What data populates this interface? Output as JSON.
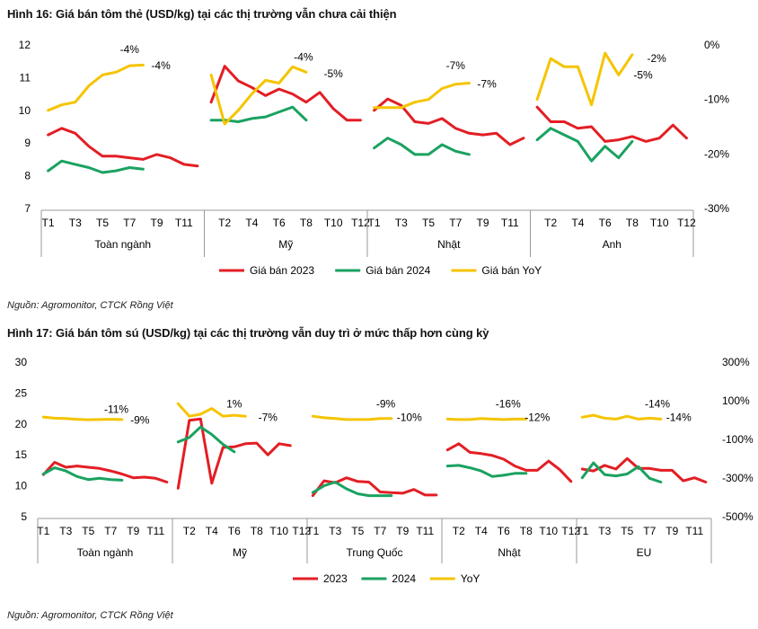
{
  "figure1": {
    "title": "Hình 16: Giá bán tôm thẻ (USD/kg) tại các thị trường vẫn chưa cải thiện",
    "source": "Nguồn: Agromonitor, CTCK Rồng Việt"
  },
  "figure2": {
    "title": "Hình 17: Giá bán tôm sú (USD/kg) tại các thị trường vẫn duy trì ở mức thấp hơn cùng kỳ",
    "source": "Nguồn: Agromonitor, CTCK Rồng Việt"
  },
  "colors": {
    "s2023": "#e31e24",
    "s2024": "#1aa260",
    "yoy": "#f5c400",
    "axis": "#999999"
  },
  "chart_data": [
    {
      "type": "line",
      "title": "Hình 16: Giá bán tôm thẻ (USD/kg) tại các thị trường vẫn chưa cải thiện",
      "ylim": [
        7,
        12
      ],
      "y_ticks": [
        "7",
        "8",
        "9",
        "10",
        "11",
        "12"
      ],
      "y2lim": [
        -30,
        0
      ],
      "y2_ticks": [
        "-30%",
        "-20%",
        "-10%",
        "0%"
      ],
      "legend": [
        "Giá bán 2023",
        "Giá bán 2024",
        "Giá bán YoY"
      ],
      "legend_position": "bottom",
      "groups": [
        {
          "name": "Toàn ngành",
          "tick_labels": [
            "T1",
            "T3",
            "T5",
            "T7",
            "T9",
            "T11"
          ],
          "tick_months": [
            1,
            3,
            5,
            7,
            9,
            11
          ],
          "s2023": [
            9.25,
            9.45,
            9.3,
            8.9,
            8.6,
            8.6,
            8.55,
            8.5,
            8.65,
            8.55,
            8.35,
            8.3
          ],
          "s2024": [
            8.15,
            8.45,
            8.35,
            8.25,
            8.1,
            8.15,
            8.25,
            8.2
          ],
          "yoy": [
            -12,
            -11,
            -10.5,
            -7.5,
            -5.5,
            -5,
            -3.8,
            -3.7
          ],
          "yoy_labels": [
            {
              "text": "-4%",
              "month": 7,
              "y": -0.8
            },
            {
              "text": "-4%",
              "month": 9.3,
              "y": -3.8
            }
          ]
        },
        {
          "name": "Mỹ",
          "tick_labels": [
            "T2",
            "T4",
            "T6",
            "T8",
            "T10",
            "T12"
          ],
          "tick_months": [
            2,
            4,
            6,
            8,
            10,
            12
          ],
          "s2023": [
            10.25,
            11.35,
            10.9,
            10.7,
            10.45,
            10.65,
            10.5,
            10.25,
            10.55,
            10.05,
            9.7,
            9.7
          ],
          "s2024": [
            9.7,
            9.7,
            9.65,
            9.75,
            9.8,
            9.95,
            10.1,
            9.7
          ],
          "yoy": [
            -5.5,
            -14.5,
            -12,
            -9,
            -6.5,
            -7,
            -4,
            -5
          ],
          "yoy_labels": [
            {
              "text": "-4%",
              "month": 7.8,
              "y": -2.2
            },
            {
              "text": "-5%",
              "month": 10,
              "y": -5.3
            }
          ]
        },
        {
          "name": "Nhật",
          "tick_labels": [
            "T1",
            "T3",
            "T5",
            "T7",
            "T9",
            "T11"
          ],
          "tick_months": [
            1,
            3,
            5,
            7,
            9,
            11
          ],
          "s2023": [
            10.0,
            10.35,
            10.15,
            9.65,
            9.6,
            9.75,
            9.45,
            9.3,
            9.25,
            9.3,
            8.95,
            9.15
          ],
          "s2024": [
            8.85,
            9.15,
            8.95,
            8.65,
            8.65,
            8.95,
            8.75,
            8.65
          ],
          "yoy": [
            -11.5,
            -11.5,
            -11.5,
            -10.5,
            -10,
            -8,
            -7.2,
            -7
          ],
          "yoy_labels": [
            {
              "text": "-7%",
              "month": 7,
              "y": -3.8
            },
            {
              "text": "-7%",
              "month": 9.3,
              "y": -7.2
            }
          ]
        },
        {
          "name": "Anh",
          "tick_labels": [
            "T2",
            "T4",
            "T6",
            "T8",
            "T10",
            "T12"
          ],
          "tick_months": [
            2,
            4,
            6,
            8,
            10,
            12
          ],
          "s2023": [
            10.1,
            9.65,
            9.65,
            9.45,
            9.5,
            9.05,
            9.1,
            9.2,
            9.05,
            9.15,
            9.55,
            9.15
          ],
          "s2024": [
            9.1,
            9.45,
            9.25,
            9.05,
            8.45,
            8.9,
            8.55,
            9.05
          ],
          "yoy": [
            -10,
            -2.5,
            -4,
            -4,
            -11,
            -1.5,
            -5.5,
            -1.8
          ],
          "yoy_labels": [
            {
              "text": "-2%",
              "month": 9.8,
              "y": -2.5
            },
            {
              "text": "-5%",
              "month": 8.8,
              "y": -5.5
            }
          ]
        }
      ]
    },
    {
      "type": "line",
      "title": "Hình 17: Giá bán tôm sú (USD/kg) tại các thị trường vẫn duy trì ở mức thấp hơn cùng kỳ",
      "ylim": [
        5,
        30
      ],
      "y_ticks": [
        "5",
        "10",
        "15",
        "20",
        "25",
        "30"
      ],
      "y2lim": [
        -500,
        300
      ],
      "y2_ticks": [
        "-500%",
        "-300%",
        "-100%",
        "100%",
        "300%"
      ],
      "legend": [
        "2023",
        "2024",
        "YoY"
      ],
      "legend_position": "bottom",
      "groups": [
        {
          "name": "Toàn ngành",
          "tick_labels": [
            "T1",
            "T3",
            "T5",
            "T7",
            "T9",
            "T11"
          ],
          "tick_months": [
            1,
            3,
            5,
            7,
            9,
            11
          ],
          "s2023": [
            11.8,
            13.8,
            13.0,
            13.2,
            13.0,
            12.8,
            12.4,
            11.9,
            11.3,
            11.4,
            11.2,
            10.6
          ],
          "s2024": [
            11.9,
            12.9,
            12.4,
            11.5,
            11.0,
            11.2,
            11.0,
            10.9
          ],
          "yoy": [
            16,
            10,
            8,
            4,
            2,
            3,
            4,
            3
          ],
          "yoy_labels": [
            {
              "text": "-11%",
              "month": 7.5,
              "y": 56
            },
            {
              "text": "-9%",
              "month": 9.6,
              "y": 0
            }
          ]
        },
        {
          "name": "Mỹ",
          "tick_labels": [
            "T2",
            "T4",
            "T6",
            "T8",
            "T10",
            "T12"
          ],
          "tick_months": [
            2,
            4,
            6,
            8,
            10,
            12
          ],
          "s2023": [
            9.6,
            20.6,
            20.8,
            10.4,
            16.2,
            16.3,
            16.8,
            16.9,
            15.0,
            16.8,
            16.5
          ],
          "s2024": [
            17.1,
            17.8,
            19.5,
            18.3,
            16.7,
            15.5
          ],
          "yoy": [
            85,
            20,
            30,
            60,
            20,
            25,
            20
          ],
          "yoy_labels": [
            {
              "text": "1%",
              "month": 6,
              "y": 84
            },
            {
              "text": "-7%",
              "month": 9,
              "y": 14
            }
          ]
        },
        {
          "name": "Trung Quốc",
          "tick_labels": [
            "T1",
            "T3",
            "T5",
            "T7",
            "T9",
            "T11"
          ],
          "tick_months": [
            1,
            3,
            5,
            7,
            9,
            11
          ],
          "s2023": [
            8.4,
            10.8,
            10.5,
            11.3,
            10.7,
            10.6,
            9.0,
            8.9,
            8.8,
            9.4,
            8.5,
            8.5
          ],
          "s2024": [
            8.9,
            10.0,
            10.6,
            9.5,
            8.7,
            8.4,
            8.4,
            8.4
          ],
          "yoy": [
            20,
            12,
            8,
            3,
            3,
            3,
            8,
            8
          ],
          "yoy_labels": [
            {
              "text": "-9%",
              "month": 7.5,
              "y": 84
            },
            {
              "text": "-10%",
              "month": 9.6,
              "y": 14
            }
          ]
        },
        {
          "name": "Nhật",
          "tick_labels": [
            "T2",
            "T4",
            "T6",
            "T8",
            "T10",
            "T12"
          ],
          "tick_months": [
            2,
            4,
            6,
            8,
            10,
            12
          ],
          "s2023": [
            15.8,
            16.8,
            15.4,
            15.2,
            14.9,
            14.3,
            13.2,
            12.5,
            12.5,
            14.0,
            12.6,
            10.7
          ],
          "s2024": [
            13.2,
            13.3,
            12.9,
            12.4,
            11.5,
            11.7,
            12.0,
            12.0
          ],
          "yoy": [
            5,
            3,
            3,
            8,
            5,
            3,
            5,
            5
          ],
          "yoy_labels": [
            {
              "text": "-16%",
              "month": 6.4,
              "y": 84
            },
            {
              "text": "-12%",
              "month": 9,
              "y": 14
            }
          ]
        },
        {
          "name": "EU",
          "tick_labels": [
            "T1",
            "T3",
            "T5",
            "T7",
            "T9",
            "T11"
          ],
          "tick_months": [
            1,
            3,
            5,
            7,
            9,
            11
          ],
          "s2023": [
            12.7,
            12.4,
            13.3,
            12.7,
            14.4,
            12.8,
            12.8,
            12.5,
            12.5,
            10.8,
            11.3,
            10.6
          ],
          "s2024": [
            11.3,
            13.7,
            11.8,
            11.6,
            11.9,
            13.1,
            11.2,
            10.6
          ],
          "yoy": [
            15,
            25,
            10,
            5,
            20,
            5,
            10,
            5
          ],
          "yoy_labels": [
            {
              "text": "-14%",
              "month": 7.7,
              "y": 84
            },
            {
              "text": "-14%",
              "month": 9.6,
              "y": 14
            }
          ]
        }
      ]
    }
  ]
}
